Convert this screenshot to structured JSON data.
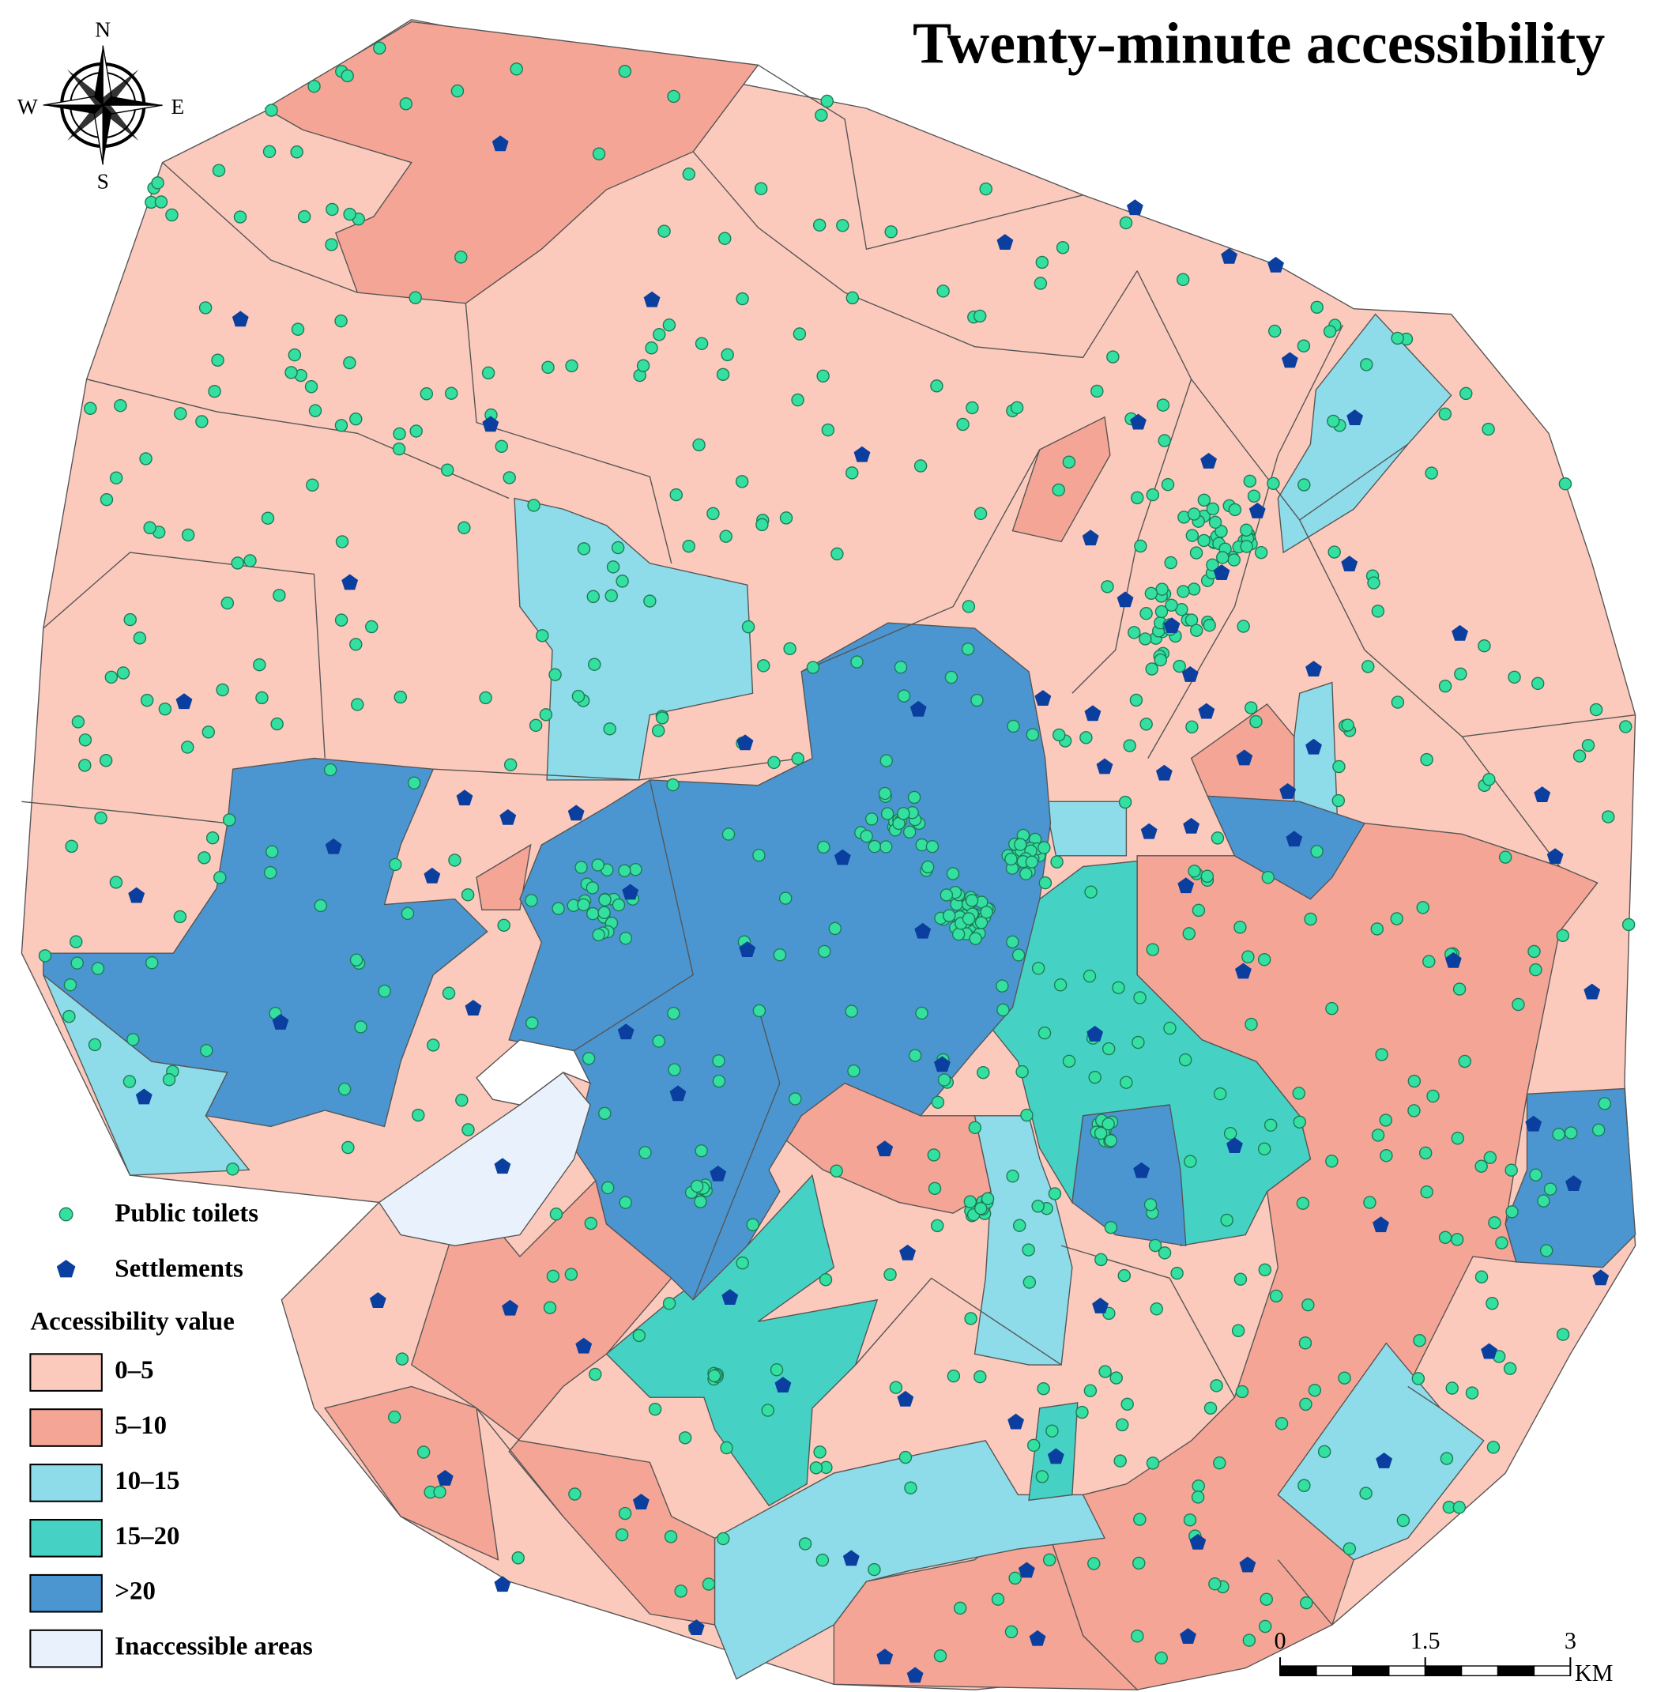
{
  "title": "Twenty-minute accessibility",
  "compass": {
    "north": "N",
    "south": "S",
    "east": "E",
    "west": "W"
  },
  "legend": {
    "points": [
      {
        "label": "Public toilets",
        "color": "#33e0a0"
      },
      {
        "label": "Settlements",
        "color": "#0b3f9f"
      }
    ],
    "heading": "Accessibility value",
    "classes": [
      {
        "label": "0–5",
        "color": "#fbcabc"
      },
      {
        "label": "5–10",
        "color": "#f5a596"
      },
      {
        "label": "10–15",
        "color": "#8edbe9"
      },
      {
        "label": "15–20",
        "color": "#45d2c4"
      },
      {
        "label": ">20",
        "color": "#4b96d0"
      },
      {
        "label": "Inaccessible areas",
        "color": "#e9f2fc"
      }
    ]
  },
  "scale_bar": {
    "ticks": [
      0,
      1.5,
      3
    ],
    "unit": "KM"
  }
}
